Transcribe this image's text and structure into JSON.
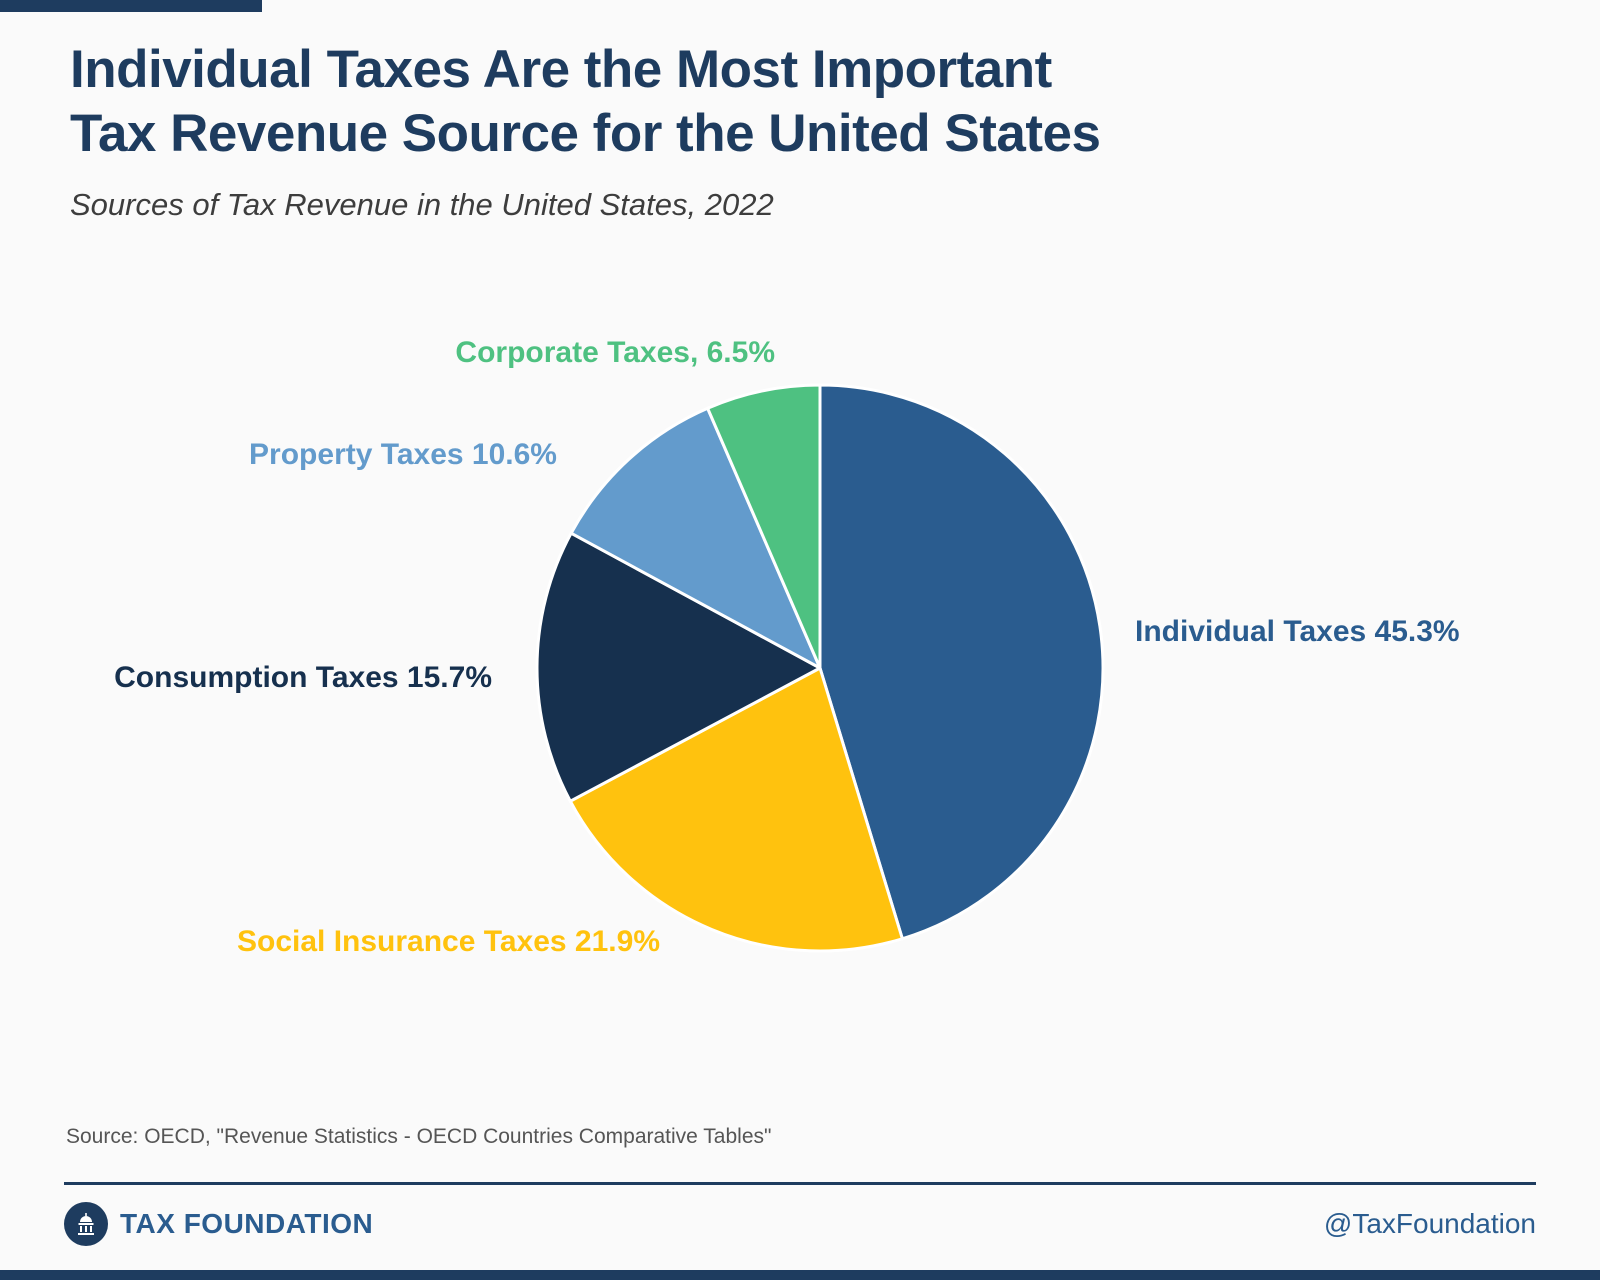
{
  "page": {
    "title_line1": "Individual Taxes Are the Most Important",
    "title_line2": "Tax Revenue Source for the United States",
    "subtitle": "Sources of Tax Revenue in the United States, 2022",
    "source": "Source: OECD, \"Revenue Statistics - OECD Countries Comparative Tables\"",
    "footer": {
      "brand": "TAX FOUNDATION",
      "handle": "@TaxFoundation"
    }
  },
  "colors": {
    "navy": "#1e3c5f",
    "background": "#fafafa",
    "divider": "#1e3c5f"
  },
  "chart_data": {
    "type": "pie",
    "title": "Sources of Tax Revenue in the United States, 2022",
    "start_angle_deg": 0,
    "direction": "clockwise",
    "slices": [
      {
        "label": "Individual Taxes",
        "value": 45.3,
        "color": "#2a5c8f",
        "display": "Individual Taxes 45.3%"
      },
      {
        "label": "Social Insurance Taxes",
        "value": 21.9,
        "color": "#ffc20e",
        "display": "Social Insurance Taxes 21.9%"
      },
      {
        "label": "Consumption Taxes",
        "value": 15.7,
        "color": "#16304e",
        "display": "Consumption Taxes 15.7%"
      },
      {
        "label": "Property Taxes",
        "value": 10.6,
        "color": "#639bcc",
        "display": "Property Taxes 10.6%"
      },
      {
        "label": "Corporate Taxes",
        "value": 6.5,
        "color": "#4ec181",
        "display": "Corporate Taxes, 6.5%"
      }
    ]
  }
}
